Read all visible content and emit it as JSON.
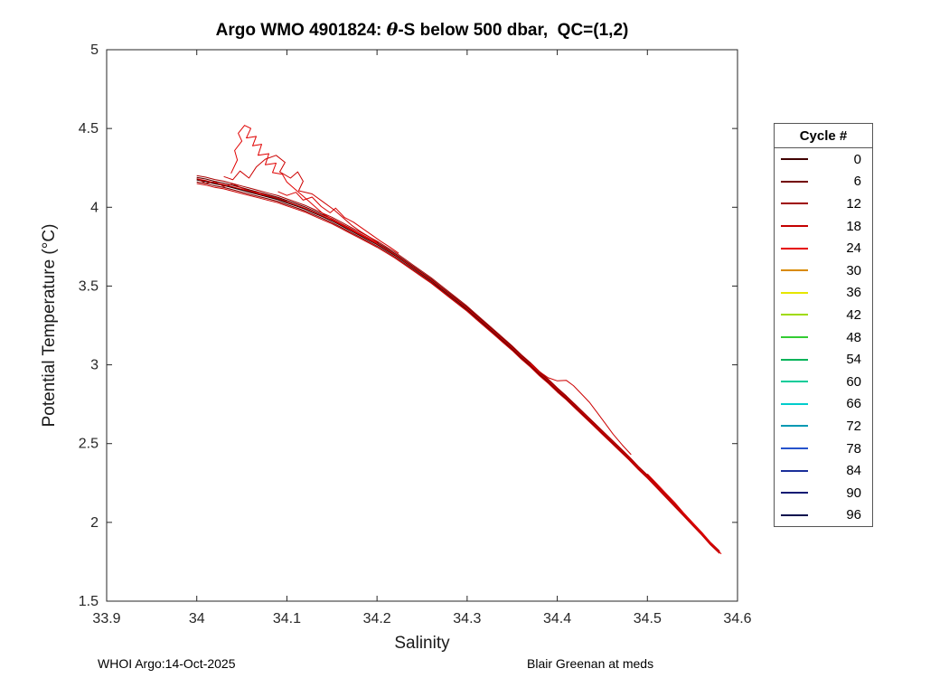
{
  "footer": {
    "left": "WHOI Argo:14-Oct-2025",
    "right": "Blair Greenan at meds"
  },
  "chart_data": {
    "type": "line",
    "title": "Argo WMO 4901824: θ-S below 500 dbar,  QC=(1,2)",
    "title_pre": "Argo WMO 4901824: ",
    "title_theta": "θ",
    "title_post": "-S below 500 dbar,  QC=(1,2)",
    "xlabel": "Salinity",
    "ylabel": "Potential Temperature (°C)",
    "xlim": [
      33.9,
      34.6
    ],
    "ylim": [
      1.5,
      5
    ],
    "grid": false,
    "axis_color": "#262626",
    "xticks": [
      "33.9",
      "34",
      "34.1",
      "34.2",
      "34.3",
      "34.4",
      "34.5",
      "34.6"
    ],
    "xtick_values": [
      33.9,
      34.0,
      34.1,
      34.2,
      34.3,
      34.4,
      34.5,
      34.6
    ],
    "yticks": [
      "1.5",
      "2",
      "2.5",
      "3",
      "3.5",
      "4",
      "4.5",
      "5"
    ],
    "ytick_values": [
      1.5,
      2.0,
      2.5,
      3.0,
      3.5,
      4.0,
      4.5,
      5.0
    ],
    "legend": {
      "title": "Cycle #",
      "position": "outside-right",
      "entries": [
        {
          "label": "0",
          "color": "#400000"
        },
        {
          "label": "6",
          "color": "#730000"
        },
        {
          "label": "12",
          "color": "#9e0000"
        },
        {
          "label": "18",
          "color": "#c40000"
        },
        {
          "label": "24",
          "color": "#e60000"
        },
        {
          "label": "30",
          "color": "#d98a00"
        },
        {
          "label": "36",
          "color": "#e6e600"
        },
        {
          "label": "42",
          "color": "#9fdb00"
        },
        {
          "label": "48",
          "color": "#33cc33"
        },
        {
          "label": "54",
          "color": "#00b359"
        },
        {
          "label": "60",
          "color": "#00cc99"
        },
        {
          "label": "66",
          "color": "#00cccc"
        },
        {
          "label": "72",
          "color": "#0099b3"
        },
        {
          "label": "78",
          "color": "#2653cc"
        },
        {
          "label": "84",
          "color": "#1a2e99"
        },
        {
          "label": "90",
          "color": "#0d1a73"
        },
        {
          "label": "96",
          "color": "#050d4d"
        }
      ]
    },
    "main_curve": {
      "x": [
        34.0,
        34.01,
        34.02,
        34.03,
        34.04,
        34.05,
        34.06,
        34.07,
        34.08,
        34.09,
        34.1,
        34.11,
        34.12,
        34.13,
        34.14,
        34.15,
        34.16,
        34.17,
        34.18,
        34.19,
        34.2,
        34.21,
        34.22,
        34.23,
        34.24,
        34.25,
        34.26,
        34.27,
        34.28,
        34.29,
        34.3,
        34.31,
        34.32,
        34.33,
        34.34,
        34.35,
        34.36,
        34.37,
        34.38,
        34.39,
        34.4,
        34.41,
        34.42,
        34.43,
        34.44,
        34.45,
        34.46,
        34.47,
        34.48,
        34.49,
        34.5,
        34.51,
        34.52,
        34.53,
        34.54,
        34.55,
        34.56,
        34.57,
        34.58
      ],
      "y": [
        4.175,
        4.165,
        4.15,
        4.14,
        4.125,
        4.11,
        4.095,
        4.08,
        4.065,
        4.05,
        4.03,
        4.01,
        3.99,
        3.965,
        3.94,
        3.915,
        3.885,
        3.855,
        3.825,
        3.795,
        3.765,
        3.73,
        3.695,
        3.655,
        3.615,
        3.575,
        3.535,
        3.49,
        3.445,
        3.4,
        3.355,
        3.305,
        3.255,
        3.205,
        3.155,
        3.105,
        3.05,
        3.0,
        2.945,
        2.895,
        2.84,
        2.79,
        2.735,
        2.68,
        2.625,
        2.57,
        2.515,
        2.46,
        2.405,
        2.345,
        2.29,
        2.23,
        2.17,
        2.11,
        2.05,
        1.99,
        1.93,
        1.865,
        1.81
      ]
    },
    "band_lines": [
      {
        "color": "#260000",
        "offset": 0.0,
        "width": 1.6
      },
      {
        "color": "#5c0000",
        "offset": 0.012,
        "width": 1.1
      },
      {
        "color": "#850000",
        "offset": -0.012,
        "width": 1.1
      },
      {
        "color": "#a80000",
        "offset": 0.022,
        "width": 1.0
      },
      {
        "color": "#cc0000",
        "offset": -0.02,
        "width": 1.0
      },
      {
        "color": "#e60000",
        "offset": 0.004,
        "width": 1.0
      }
    ],
    "noise_traces": [
      {
        "color": "#e00000",
        "width": 1,
        "points": [
          [
            34.038,
            4.215
          ],
          [
            34.045,
            4.3
          ],
          [
            34.042,
            4.36
          ],
          [
            34.05,
            4.42
          ],
          [
            34.046,
            4.47
          ],
          [
            34.053,
            4.52
          ],
          [
            34.06,
            4.5
          ],
          [
            34.055,
            4.44
          ],
          [
            34.066,
            4.45
          ],
          [
            34.062,
            4.39
          ],
          [
            34.072,
            4.4
          ],
          [
            34.068,
            4.33
          ],
          [
            34.08,
            4.34
          ],
          [
            34.076,
            4.27
          ],
          [
            34.088,
            4.28
          ],
          [
            34.084,
            4.22
          ],
          [
            34.095,
            4.21
          ],
          [
            34.1,
            4.16
          ],
          [
            34.11,
            4.11
          ],
          [
            34.12,
            4.06
          ],
          [
            34.13,
            4.01
          ],
          [
            34.14,
            3.96
          ],
          [
            34.15,
            3.925
          ],
          [
            34.16,
            3.895
          ],
          [
            34.17,
            3.865
          ],
          [
            34.18,
            3.835
          ],
          [
            34.19,
            3.805
          ],
          [
            34.2,
            3.775
          ]
        ]
      },
      {
        "color": "#cc0000",
        "width": 1,
        "points": [
          [
            34.03,
            4.195
          ],
          [
            34.04,
            4.175
          ],
          [
            34.048,
            4.23
          ],
          [
            34.058,
            4.185
          ],
          [
            34.066,
            4.255
          ],
          [
            34.076,
            4.305
          ],
          [
            34.088,
            4.33
          ],
          [
            34.098,
            4.285
          ],
          [
            34.092,
            4.225
          ],
          [
            34.104,
            4.185
          ],
          [
            34.112,
            4.225
          ],
          [
            34.118,
            4.165
          ],
          [
            34.113,
            4.105
          ],
          [
            34.128,
            4.085
          ],
          [
            34.14,
            4.035
          ],
          [
            34.152,
            3.985
          ],
          [
            34.162,
            3.935
          ],
          [
            34.172,
            3.885
          ],
          [
            34.182,
            3.845
          ],
          [
            34.192,
            3.81
          ],
          [
            34.202,
            3.775
          ]
        ]
      },
      {
        "color": "#d80000",
        "width": 1,
        "points": [
          [
            34.09,
            4.1
          ],
          [
            34.1,
            4.075
          ],
          [
            34.11,
            4.095
          ],
          [
            34.118,
            4.045
          ],
          [
            34.128,
            4.065
          ],
          [
            34.138,
            4.005
          ],
          [
            34.148,
            3.965
          ],
          [
            34.154,
            3.995
          ],
          [
            34.164,
            3.935
          ],
          [
            34.174,
            3.905
          ],
          [
            34.184,
            3.865
          ],
          [
            34.194,
            3.825
          ],
          [
            34.204,
            3.785
          ],
          [
            34.214,
            3.748
          ],
          [
            34.224,
            3.708
          ]
        ]
      },
      {
        "color": "#b40000",
        "width": 1,
        "points": [
          [
            34.0,
            4.182
          ],
          [
            34.01,
            4.152
          ],
          [
            34.02,
            4.162
          ],
          [
            34.03,
            4.132
          ],
          [
            34.04,
            4.148
          ],
          [
            34.05,
            4.122
          ],
          [
            34.06,
            4.102
          ],
          [
            34.07,
            4.092
          ],
          [
            34.08,
            4.072
          ],
          [
            34.09,
            4.056
          ],
          [
            34.1,
            4.036
          ]
        ]
      },
      {
        "color": "#cc0000",
        "width": 1,
        "points": [
          [
            34.37,
            3.008
          ],
          [
            34.38,
            2.958
          ],
          [
            34.39,
            2.918
          ],
          [
            34.4,
            2.898
          ],
          [
            34.41,
            2.902
          ],
          [
            34.418,
            2.868
          ],
          [
            34.426,
            2.82
          ],
          [
            34.436,
            2.76
          ],
          [
            34.444,
            2.7
          ],
          [
            34.452,
            2.638
          ],
          [
            34.462,
            2.56
          ],
          [
            34.472,
            2.492
          ],
          [
            34.482,
            2.43
          ]
        ]
      },
      {
        "color": "#e00000",
        "width": 1,
        "points": [
          [
            34.5,
            2.308
          ],
          [
            34.51,
            2.248
          ],
          [
            34.52,
            2.188
          ],
          [
            34.53,
            2.128
          ],
          [
            34.54,
            2.062
          ],
          [
            34.55,
            2.0
          ],
          [
            34.56,
            1.938
          ],
          [
            34.57,
            1.872
          ],
          [
            34.578,
            1.822
          ],
          [
            34.582,
            1.8
          ]
        ]
      }
    ]
  }
}
